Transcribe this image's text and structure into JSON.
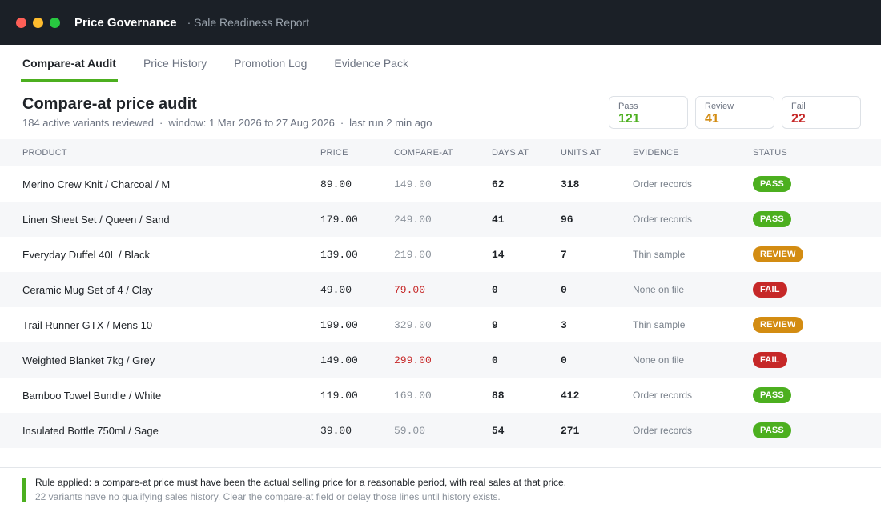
{
  "window": {
    "title": "Price Governance",
    "subtitle": "· Sale Readiness Report"
  },
  "tabs": [
    {
      "label": "Compare-at Audit",
      "active": true
    },
    {
      "label": "Price History",
      "active": false
    },
    {
      "label": "Promotion Log",
      "active": false
    },
    {
      "label": "Evidence Pack",
      "active": false
    }
  ],
  "header": {
    "title": "Compare-at price audit",
    "meta": [
      "184 active variants reviewed",
      "window: 1 Mar 2026 to 27 Aug 2026",
      "last run 2 min ago"
    ],
    "meta_sep": "·"
  },
  "summary": [
    {
      "label": "Pass",
      "value": "121",
      "color": "#4caf1f"
    },
    {
      "label": "Review",
      "value": "41",
      "color": "#d38c12"
    },
    {
      "label": "Fail",
      "value": "22",
      "color": "#c62828"
    }
  ],
  "table": {
    "columns": {
      "product": "PRODUCT",
      "price": "PRICE",
      "compare": "COMPARE-AT",
      "days": "DAYS AT",
      "units": "UNITS AT",
      "evidence": "EVIDENCE",
      "status": "STATUS"
    },
    "rows": [
      {
        "product": "Merino Crew Knit / Charcoal / M",
        "price": "89.00",
        "compare": "149.00",
        "days": "62",
        "units": "318",
        "evidence": "Order records",
        "status": "PASS"
      },
      {
        "product": "Linen Sheet Set / Queen / Sand",
        "price": "179.00",
        "compare": "249.00",
        "days": "41",
        "units": "96",
        "evidence": "Order records",
        "status": "PASS"
      },
      {
        "product": "Everyday Duffel 40L / Black",
        "price": "139.00",
        "compare": "219.00",
        "days": "14",
        "units": "7",
        "evidence": "Thin sample",
        "status": "REVIEW"
      },
      {
        "product": "Ceramic Mug Set of 4 / Clay",
        "price": "49.00",
        "compare": "79.00",
        "days": "0",
        "units": "0",
        "evidence": "None on file",
        "status": "FAIL"
      },
      {
        "product": "Trail Runner GTX / Mens 10",
        "price": "199.00",
        "compare": "329.00",
        "days": "9",
        "units": "3",
        "evidence": "Thin sample",
        "status": "REVIEW"
      },
      {
        "product": "Weighted Blanket 7kg / Grey",
        "price": "149.00",
        "compare": "299.00",
        "days": "0",
        "units": "0",
        "evidence": "None on file",
        "status": "FAIL"
      },
      {
        "product": "Bamboo Towel Bundle / White",
        "price": "119.00",
        "compare": "169.00",
        "days": "88",
        "units": "412",
        "evidence": "Order records",
        "status": "PASS"
      },
      {
        "product": "Insulated Bottle 750ml / Sage",
        "price": "39.00",
        "compare": "59.00",
        "days": "54",
        "units": "271",
        "evidence": "Order records",
        "status": "PASS"
      }
    ]
  },
  "status_colors": {
    "PASS": "#4caf1f",
    "REVIEW": "#d38c12",
    "FAIL": "#c62828"
  },
  "footer": {
    "rule": "Rule applied: a compare-at price must have been the actual selling price for a reasonable period, with real sales at that price.",
    "note": "22 variants have no qualifying sales history. Clear the compare-at field or delay those lines until history exists."
  }
}
